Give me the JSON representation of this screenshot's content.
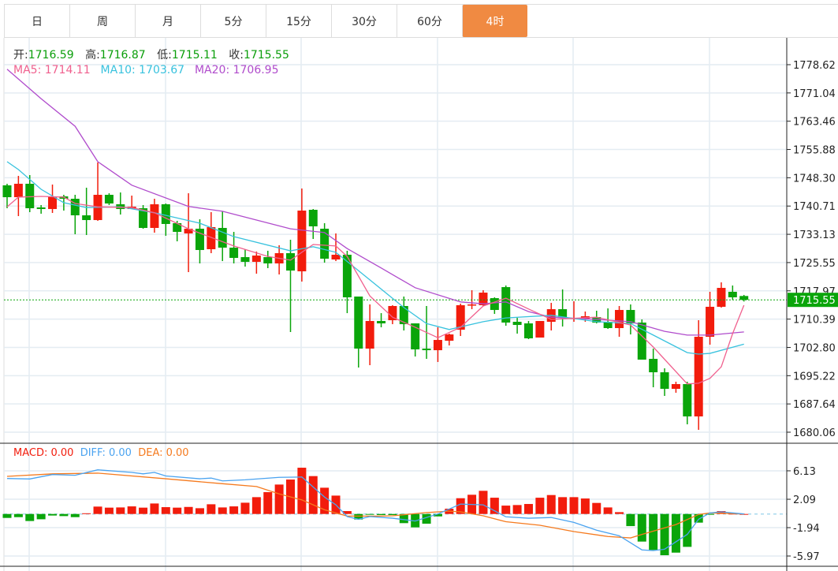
{
  "tabs": [
    {
      "label": "日",
      "active": false
    },
    {
      "label": "周",
      "active": false
    },
    {
      "label": "月",
      "active": false
    },
    {
      "label": "5分",
      "active": false
    },
    {
      "label": "15分",
      "active": false
    },
    {
      "label": "30分",
      "active": false
    },
    {
      "label": "60分",
      "active": false
    },
    {
      "label": "4时",
      "active": true
    }
  ],
  "ohlc": {
    "open_label": "开:",
    "open": "1716.59",
    "high_label": "高:",
    "high": "1716.87",
    "low_label": "低:",
    "low": "1715.11",
    "close_label": "收:",
    "close": "1715.55"
  },
  "ma_legend": {
    "ma5": "MA5: 1714.11",
    "ma10": "MA10: 1703.67",
    "ma20": "MA20: 1706.95"
  },
  "macd_legend": {
    "macd": "MACD: 0.00",
    "diff": "DIFF: 0.00",
    "dea": "DEA: 0.00"
  },
  "colors": {
    "up": "#f21c0c",
    "down": "#0aa50a",
    "ma5": "#f0608e",
    "ma10": "#38c2de",
    "ma20": "#b04ccc",
    "diff": "#4aa3f0",
    "dea": "#f57a1e",
    "accent": "#f08a42"
  },
  "chart_data": {
    "type": "candlestick",
    "price_axis": {
      "ticks": [
        "1778.62",
        "1771.04",
        "1763.46",
        "1755.88",
        "1748.30",
        "1740.71",
        "1733.13",
        "1725.55",
        "1717.97",
        "1710.39",
        "1702.80",
        "1695.22",
        "1687.64",
        "1680.06"
      ],
      "last_price": "1715.55"
    },
    "candles_ohlc": [
      [
        1746.26,
        1746.68,
        1740.12,
        1743.08
      ],
      [
        1743.08,
        1748.8,
        1738.01,
        1746.68
      ],
      [
        1746.68,
        1749.01,
        1739.07,
        1740.12
      ],
      [
        1740.34,
        1740.97,
        1738.65,
        1739.91
      ],
      [
        1739.91,
        1746.47,
        1738.86,
        1743.3
      ],
      [
        1743.3,
        1743.72,
        1739.49,
        1742.66
      ],
      [
        1742.66,
        1743.72,
        1733.15,
        1738.22
      ],
      [
        1738.22,
        1745.62,
        1732.94,
        1736.95
      ],
      [
        1736.95,
        1752.39,
        1736.74,
        1743.72
      ],
      [
        1743.72,
        1744.14,
        1740.97,
        1741.39
      ],
      [
        1741.18,
        1744.35,
        1738.43,
        1739.91
      ],
      [
        1739.91,
        1743.51,
        1739.91,
        1740.55
      ],
      [
        1740.12,
        1740.97,
        1734.63,
        1734.84
      ],
      [
        1734.84,
        1742.66,
        1733.57,
        1741.18
      ],
      [
        1741.18,
        1741.39,
        1732.73,
        1735.9
      ],
      [
        1736.11,
        1736.74,
        1731.25,
        1733.78
      ],
      [
        1733.36,
        1744.14,
        1722.99,
        1734.63
      ],
      [
        1734.63,
        1737.16,
        1725.32,
        1728.92
      ],
      [
        1729.13,
        1739.07,
        1728.07,
        1735.05
      ],
      [
        1734.84,
        1739.28,
        1725.95,
        1729.55
      ],
      [
        1729.55,
        1733.78,
        1725.32,
        1726.8
      ],
      [
        1727.01,
        1729.13,
        1724.47,
        1725.74
      ],
      [
        1725.74,
        1728.49,
        1722.57,
        1727.43
      ],
      [
        1727.01,
        1728.71,
        1724.05,
        1725.32
      ],
      [
        1725.32,
        1730.19,
        1722.36,
        1728.07
      ],
      [
        1728.07,
        1731.67,
        1706.92,
        1723.41
      ],
      [
        1723.2,
        1745.41,
        1720.45,
        1739.49
      ],
      [
        1739.7,
        1739.91,
        1731.88,
        1735.26
      ],
      [
        1734.63,
        1736.11,
        1725.53,
        1726.59
      ],
      [
        1726.38,
        1733.36,
        1725.95,
        1727.65
      ],
      [
        1727.65,
        1728.71,
        1711.99,
        1716.23
      ],
      [
        1716.44,
        1716.44,
        1697.4,
        1702.48
      ],
      [
        1702.48,
        1714.32,
        1698.03,
        1709.88
      ],
      [
        1709.88,
        1711.99,
        1708.19,
        1709.24
      ],
      [
        1710.09,
        1714.11,
        1709.03,
        1713.9
      ],
      [
        1713.9,
        1716.44,
        1707.34,
        1709.03
      ],
      [
        1709.24,
        1709.24,
        1700.36,
        1702.27
      ],
      [
        1702.48,
        1713.9,
        1699.73,
        1702.05
      ],
      [
        1702.05,
        1708.19,
        1698.89,
        1704.8
      ],
      [
        1704.59,
        1706.5,
        1703.32,
        1706.28
      ],
      [
        1707.55,
        1714.53,
        1705.86,
        1714.11
      ],
      [
        1714.11,
        1718.13,
        1713.05,
        1714.32
      ],
      [
        1714.11,
        1718.13,
        1713.9,
        1717.49
      ],
      [
        1716.01,
        1716.23,
        1711.78,
        1712.84
      ],
      [
        1718.97,
        1719.4,
        1708.61,
        1709.46
      ],
      [
        1709.67,
        1710.72,
        1706.5,
        1708.82
      ],
      [
        1709.24,
        1709.88,
        1705.02,
        1705.23
      ],
      [
        1705.44,
        1709.88,
        1705.44,
        1709.88
      ],
      [
        1709.67,
        1714.74,
        1707.34,
        1713.05
      ],
      [
        1713.05,
        1718.34,
        1708.4,
        1710.72
      ],
      [
        1710.51,
        1715.17,
        1709.67,
        1710.72
      ],
      [
        1710.51,
        1712.42,
        1709.67,
        1711.15
      ],
      [
        1710.94,
        1712.63,
        1709.24,
        1709.46
      ],
      [
        1709.67,
        1713.26,
        1707.76,
        1707.98
      ],
      [
        1707.98,
        1713.9,
        1705.65,
        1712.84
      ],
      [
        1712.84,
        1714.32,
        1706.28,
        1709.24
      ],
      [
        1709.46,
        1710.3,
        1699.52,
        1699.52
      ],
      [
        1699.73,
        1702.48,
        1692.11,
        1696.13
      ],
      [
        1696.13,
        1697.19,
        1689.79,
        1691.69
      ],
      [
        1691.69,
        1693.59,
        1690.64,
        1692.96
      ],
      [
        1692.96,
        1693.59,
        1682.17,
        1684.29
      ],
      [
        1684.29,
        1710.09,
        1680.69,
        1705.65
      ],
      [
        1705.65,
        1717.71,
        1703.53,
        1713.69
      ],
      [
        1713.69,
        1720.24,
        1713.47,
        1718.76
      ],
      [
        1717.71,
        1719.4,
        1715.59,
        1716.23
      ],
      [
        1716.59,
        1716.87,
        1715.11,
        1715.55
      ]
    ],
    "ma5": [
      [
        0,
        1740.5
      ],
      [
        1,
        1743.1
      ],
      [
        3,
        1743.3
      ],
      [
        5,
        1743.1
      ],
      [
        6,
        1741.4
      ],
      [
        8,
        1740.5
      ],
      [
        11,
        1740.3
      ],
      [
        13,
        1738.9
      ],
      [
        16,
        1734.6
      ],
      [
        20,
        1730.0
      ],
      [
        23,
        1727.2
      ],
      [
        25,
        1726.2
      ],
      [
        27,
        1730.4
      ],
      [
        29,
        1730.0
      ],
      [
        30,
        1727.2
      ],
      [
        32,
        1716.6
      ],
      [
        34,
        1710.9
      ],
      [
        36,
        1708.2
      ],
      [
        38,
        1705.4
      ],
      [
        40,
        1708.2
      ],
      [
        42,
        1713.9
      ],
      [
        44,
        1716.0
      ],
      [
        46,
        1713.1
      ],
      [
        48,
        1710.3
      ],
      [
        52,
        1710.9
      ],
      [
        55,
        1708.8
      ],
      [
        57,
        1702.9
      ],
      [
        60,
        1693.0
      ],
      [
        61,
        1693.2
      ],
      [
        62,
        1694.5
      ],
      [
        63,
        1697.6
      ],
      [
        64,
        1706.5
      ],
      [
        65,
        1714.11
      ]
    ],
    "ma10": [
      [
        0,
        1752.6
      ],
      [
        1,
        1750.5
      ],
      [
        3,
        1745.2
      ],
      [
        5,
        1741.6
      ],
      [
        7,
        1740.3
      ],
      [
        10,
        1740.5
      ],
      [
        13,
        1738.9
      ],
      [
        17,
        1736.1
      ],
      [
        20,
        1732.5
      ],
      [
        25,
        1728.7
      ],
      [
        27,
        1729.8
      ],
      [
        29,
        1728.3
      ],
      [
        32,
        1720.9
      ],
      [
        35,
        1713.5
      ],
      [
        37,
        1709.2
      ],
      [
        39,
        1707.6
      ],
      [
        42,
        1709.7
      ],
      [
        44,
        1710.7
      ],
      [
        48,
        1711.4
      ],
      [
        52,
        1709.7
      ],
      [
        55,
        1709.2
      ],
      [
        57,
        1706.1
      ],
      [
        60,
        1701.4
      ],
      [
        61,
        1701.0
      ],
      [
        62,
        1701.2
      ],
      [
        65,
        1703.67
      ]
    ],
    "ma20": [
      [
        0,
        1777.4
      ],
      [
        3,
        1769.5
      ],
      [
        6,
        1762.1
      ],
      [
        8,
        1752.6
      ],
      [
        11,
        1746.3
      ],
      [
        16,
        1740.6
      ],
      [
        19,
        1739.3
      ],
      [
        25,
        1734.6
      ],
      [
        28,
        1733.6
      ],
      [
        30,
        1729.3
      ],
      [
        33,
        1724.1
      ],
      [
        36,
        1718.8
      ],
      [
        40,
        1715.0
      ],
      [
        42,
        1714.5
      ],
      [
        44,
        1715.0
      ],
      [
        46,
        1712.4
      ],
      [
        48,
        1710.9
      ],
      [
        52,
        1710.3
      ],
      [
        55,
        1709.7
      ],
      [
        58,
        1707.1
      ],
      [
        60,
        1706.1
      ],
      [
        62,
        1706.1
      ],
      [
        65,
        1706.95
      ]
    ],
    "macd": {
      "ticks": [
        "6.13",
        "2.09",
        "-1.94",
        "-5.97"
      ],
      "histogram": [
        -0.56,
        -0.45,
        -1.0,
        -0.75,
        -0.22,
        -0.3,
        -0.45,
        0.1,
        1.05,
        0.9,
        0.93,
        1.08,
        0.9,
        1.49,
        0.97,
        0.9,
        1.0,
        0.82,
        1.38,
        0.93,
        1.08,
        1.6,
        2.39,
        3.1,
        4.18,
        4.89,
        6.57,
        5.38,
        3.73,
        2.61,
        0.41,
        -0.78,
        -0.1,
        -0.15,
        -0.15,
        -1.3,
        -1.9,
        -1.38,
        -0.34,
        0.75,
        2.24,
        2.73,
        3.29,
        2.31,
        1.19,
        1.27,
        1.42,
        2.31,
        2.69,
        2.39,
        2.39,
        2.2,
        1.57,
        0.93,
        0.26,
        -1.72,
        -3.92,
        -5.11,
        -5.86,
        -5.49,
        -4.67,
        -1.23,
        -0.04,
        0.41,
        0.05,
        0.0
      ],
      "diff": [
        [
          0,
          5.04
        ],
        [
          2,
          4.97
        ],
        [
          4,
          5.6
        ],
        [
          6,
          5.5
        ],
        [
          8,
          6.27
        ],
        [
          11,
          5.9
        ],
        [
          12,
          5.7
        ],
        [
          13,
          5.9
        ],
        [
          14,
          5.4
        ],
        [
          17,
          5.0
        ],
        [
          18,
          5.1
        ],
        [
          19,
          4.7
        ],
        [
          21,
          4.85
        ],
        [
          24,
          5.2
        ],
        [
          26,
          5.25
        ],
        [
          28,
          2.4
        ],
        [
          29,
          1.3
        ],
        [
          30,
          -0.37
        ],
        [
          31,
          -0.75
        ],
        [
          32,
          -0.37
        ],
        [
          34,
          -0.6
        ],
        [
          36,
          -1.0
        ],
        [
          38,
          0.0
        ],
        [
          40,
          1.4
        ],
        [
          42,
          1.3
        ],
        [
          44,
          -0.4
        ],
        [
          46,
          -0.6
        ],
        [
          48,
          -0.5
        ],
        [
          50,
          -1.2
        ],
        [
          52,
          -2.3
        ],
        [
          54,
          -3.1
        ],
        [
          56,
          -5.1
        ],
        [
          57,
          -5.2
        ],
        [
          58,
          -5.0
        ],
        [
          60,
          -2.9
        ],
        [
          61,
          -0.75
        ],
        [
          62,
          0.15
        ],
        [
          63,
          0.3
        ],
        [
          65,
          0.0
        ]
      ],
      "dea": [
        [
          0,
          5.34
        ],
        [
          4,
          5.7
        ],
        [
          8,
          5.8
        ],
        [
          14,
          5.0
        ],
        [
          19,
          4.3
        ],
        [
          22,
          3.9
        ],
        [
          24,
          2.85
        ],
        [
          26,
          2.0
        ],
        [
          28,
          0.6
        ],
        [
          30,
          -0.3
        ],
        [
          33,
          -0.3
        ],
        [
          34,
          -0.26
        ],
        [
          37,
          0.2
        ],
        [
          39,
          0.4
        ],
        [
          40,
          0.3
        ],
        [
          42,
          -0.26
        ],
        [
          44,
          -1.1
        ],
        [
          47,
          -1.6
        ],
        [
          50,
          -2.5
        ],
        [
          53,
          -3.2
        ],
        [
          55,
          -3.4
        ],
        [
          56,
          -2.9
        ],
        [
          59,
          -1.5
        ],
        [
          61,
          -0.07
        ],
        [
          62,
          0.15
        ],
        [
          65,
          0.0
        ]
      ]
    }
  }
}
